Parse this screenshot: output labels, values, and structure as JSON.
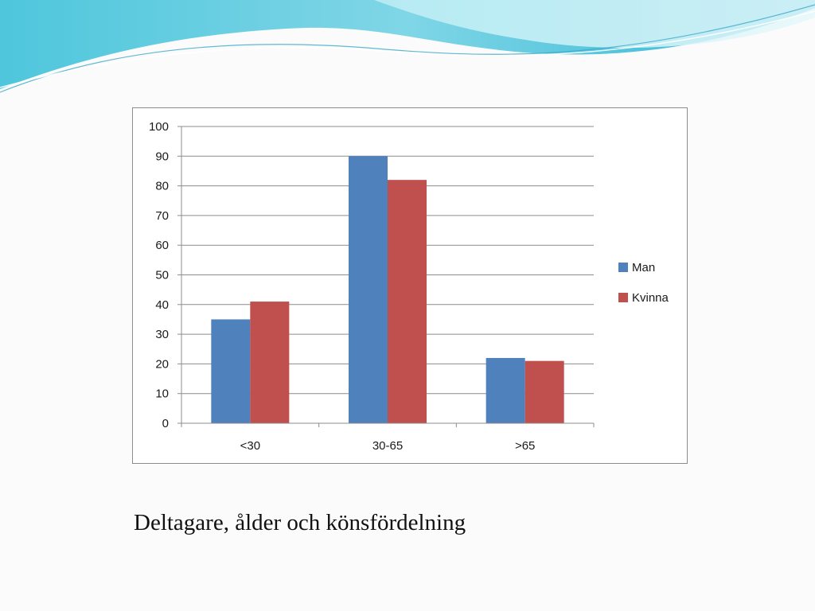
{
  "caption": "Deltagare, ålder och könsfördelning",
  "colors": {
    "man": "#4f81bd",
    "kvinna": "#c0504d",
    "grid": "#8c8c8c"
  },
  "chart_data": {
    "type": "bar",
    "categories": [
      "<30",
      "30-65",
      ">65"
    ],
    "series": [
      {
        "name": "Man",
        "values": [
          35,
          90,
          22
        ]
      },
      {
        "name": "Kvinna",
        "values": [
          41,
          82,
          21
        ]
      }
    ],
    "ylim": [
      0,
      100
    ],
    "yticks": [
      "0",
      "10",
      "20",
      "30",
      "40",
      "50",
      "60",
      "70",
      "80",
      "90",
      "100"
    ],
    "grid": true,
    "legend_position": "right"
  }
}
